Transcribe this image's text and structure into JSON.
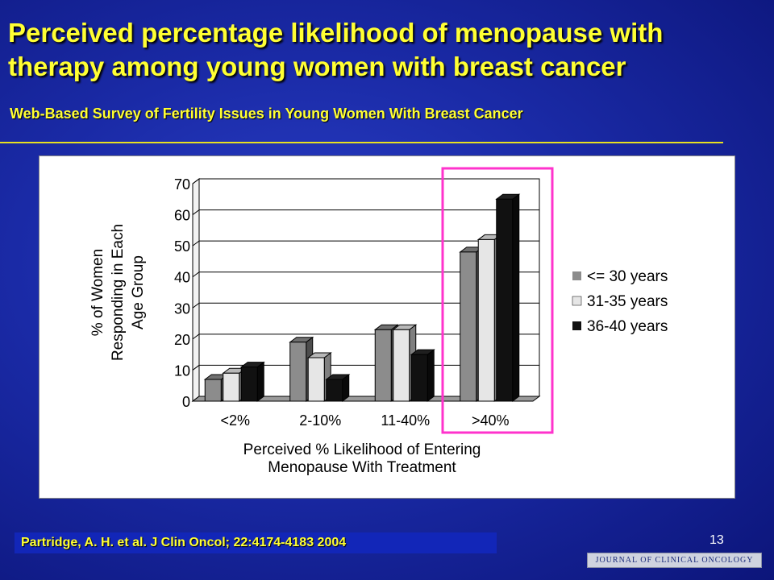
{
  "slide": {
    "title": "Perceived percentage likelihood of menopause with therapy among young women with breast cancer",
    "subtitle": "Web-Based Survey of Fertility Issues in Young Women With Breast Cancer",
    "citation": "Partridge, A. H. et al. J Clin Oncol; 22:4174-4183 2004",
    "page_number": "13",
    "journal_logo": "JOURNAL OF CLINICAL ONCOLOGY"
  },
  "colors": {
    "title": "#ffff33",
    "highlight_box": "#ff33cc",
    "series": [
      "#8c8c8c",
      "#e6e6e6",
      "#111111"
    ]
  },
  "chart_data": {
    "type": "bar",
    "categories": [
      "<2%",
      "2-10%",
      "11-40%",
      ">40%"
    ],
    "series": [
      {
        "name": "<= 30 years",
        "values": [
          7,
          19,
          23,
          48
        ]
      },
      {
        "name": "31-35 years",
        "values": [
          9,
          14,
          23,
          52
        ]
      },
      {
        "name": "36-40 years",
        "values": [
          11,
          7,
          15,
          65
        ]
      }
    ],
    "xlabel": "Perceived % Likelihood of Entering Menopause With Treatment",
    "xlabel_lines": [
      "Perceived % Likelihood of Entering",
      "Menopause With Treatment"
    ],
    "ylabel": "% of Women Responding in Each Age Group",
    "ylabel_lines": [
      "% of Women",
      "Responding in Each",
      "Age Group"
    ],
    "yticks": [
      0,
      10,
      20,
      30,
      40,
      50,
      60,
      70
    ],
    "ylim": [
      0,
      70
    ],
    "grid": true,
    "legend_position": "right",
    "highlighted_category": ">40%"
  }
}
